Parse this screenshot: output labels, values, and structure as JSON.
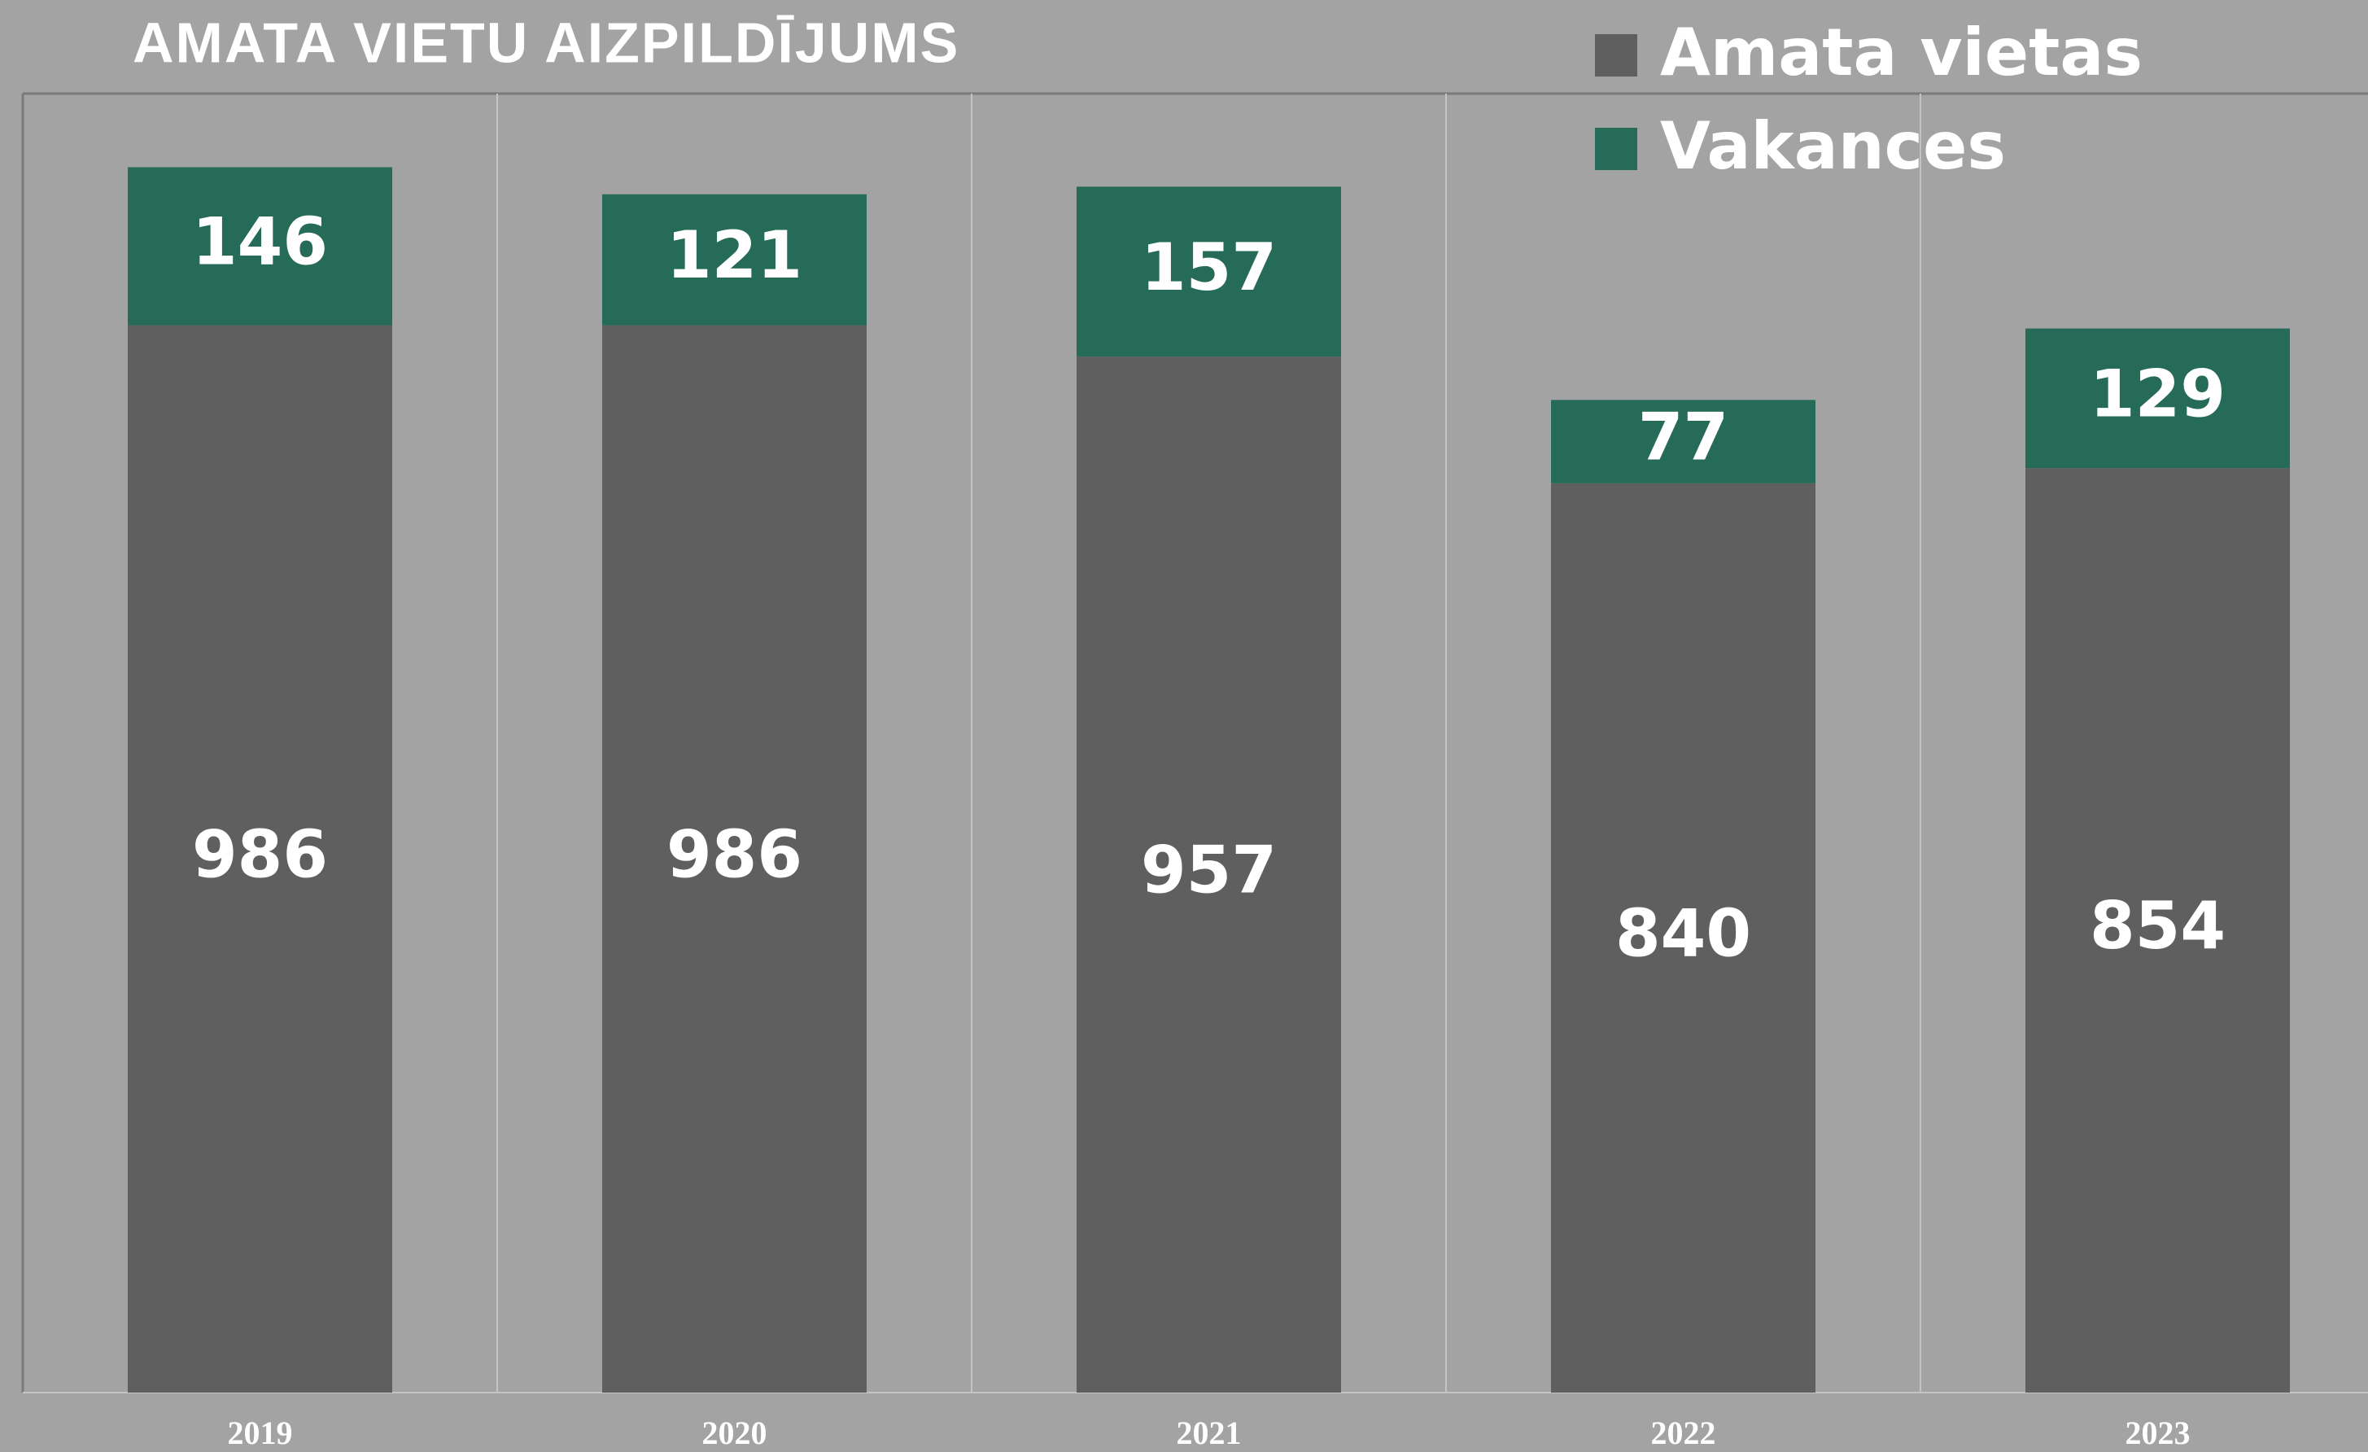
{
  "chart_data": {
    "type": "stacked_bar",
    "title": "AMATA VIETU AIZPILDĪJUMS",
    "categories": [
      "2019",
      "2020",
      "2021",
      "2022",
      "2023"
    ],
    "series": [
      {
        "name": "Amata vietas",
        "color": "#5f5f5f",
        "values": [
          986,
          986,
          957,
          840,
          854
        ]
      },
      {
        "name": "Vakances",
        "color": "#256b58",
        "values": [
          146,
          121,
          157,
          77,
          129
        ]
      }
    ],
    "ylim": [
      0,
      1200
    ],
    "legend": "top-right"
  }
}
